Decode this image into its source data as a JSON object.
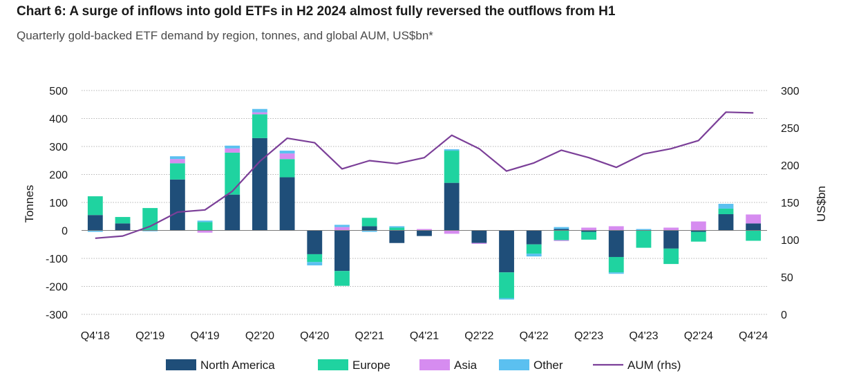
{
  "title": "Chart 6: A surge of inflows into gold ETFs in H2 2024 almost fully reversed the outflows from H1",
  "subtitle": "Quarterly gold-backed ETF demand by region, tonnes, and global AUM, US$bn*",
  "chart_data": {
    "type": "bar",
    "stacked": true,
    "categories": [
      "Q4'18",
      "Q1'19",
      "Q2'19",
      "Q3'19",
      "Q4'19",
      "Q1'20",
      "Q2'20",
      "Q3'20",
      "Q4'20",
      "Q1'21",
      "Q2'21",
      "Q3'21",
      "Q4'21",
      "Q1'22",
      "Q2'22",
      "Q3'22",
      "Q4'22",
      "Q1'23",
      "Q2'23",
      "Q3'23",
      "Q4'23",
      "Q1'24",
      "Q2'24",
      "Q3'24",
      "Q4'24"
    ],
    "x_tick_labels": [
      "Q4'18",
      "Q2'19",
      "Q4'19",
      "Q2'20",
      "Q4'20",
      "Q2'21",
      "Q4'21",
      "Q2'22",
      "Q4'22",
      "Q2'23",
      "Q4'23",
      "Q2'24",
      "Q4'24"
    ],
    "ylabel": "Tonnes",
    "y2label": "US$bn",
    "ylim": [
      -300,
      500
    ],
    "yticks": [
      -300,
      -200,
      -100,
      0,
      100,
      200,
      300,
      400,
      500
    ],
    "y2lim": [
      0,
      300
    ],
    "y2ticks": [
      0,
      50,
      100,
      150,
      200,
      250,
      300
    ],
    "grid": true,
    "legend_position": "bottom",
    "series": [
      {
        "name": "North America",
        "color": "#1f4e79",
        "values": [
          55,
          25,
          0,
          182,
          0,
          128,
          330,
          190,
          -85,
          -145,
          15,
          -45,
          -20,
          170,
          -45,
          -150,
          -50,
          5,
          -5,
          -95,
          0,
          -65,
          -5,
          58,
          25
        ]
      },
      {
        "name": "Europe",
        "color": "#1fd3a0",
        "values": [
          67,
          23,
          80,
          58,
          30,
          150,
          85,
          65,
          -28,
          -53,
          30,
          10,
          0,
          115,
          0,
          -92,
          -33,
          -35,
          -28,
          -55,
          -62,
          -55,
          -35,
          20,
          -37
        ]
      },
      {
        "name": "Asia",
        "color": "#d68cf0",
        "values": [
          0,
          0,
          0,
          15,
          -8,
          15,
          7,
          20,
          0,
          12,
          0,
          0,
          5,
          -12,
          -3,
          0,
          0,
          -3,
          10,
          15,
          0,
          10,
          32,
          0,
          32
        ]
      },
      {
        "name": "Other",
        "color": "#5bc0f0",
        "values": [
          -5,
          0,
          -3,
          10,
          5,
          10,
          12,
          10,
          -12,
          8,
          -5,
          5,
          0,
          5,
          0,
          -5,
          -10,
          7,
          0,
          -5,
          5,
          0,
          0,
          17,
          0
        ]
      }
    ],
    "line": {
      "name": "AUM (rhs)",
      "color": "#7b3f98",
      "axis": "right",
      "values": [
        102,
        105,
        118,
        137,
        140,
        165,
        205,
        236,
        230,
        195,
        206,
        202,
        210,
        240,
        222,
        192,
        203,
        220,
        210,
        197,
        215,
        222,
        233,
        271,
        270
      ]
    }
  }
}
